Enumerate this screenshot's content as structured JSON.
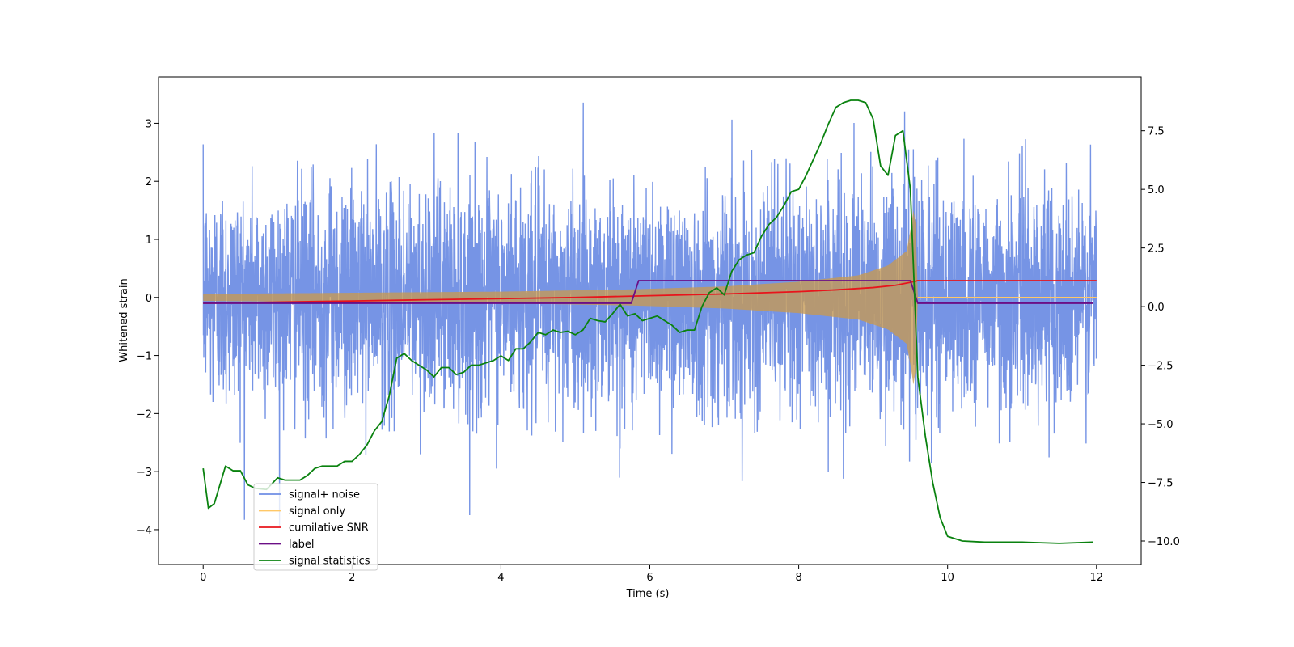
{
  "chart_data": {
    "type": "line",
    "title": "",
    "xlabel": "Time (s)",
    "ylabel": "Whitened strain",
    "ylabel_right": "",
    "xlim": [
      -0.6,
      12.6
    ],
    "ylim": [
      -4.6,
      3.8
    ],
    "ylim_right": [
      -11.0,
      9.8
    ],
    "x_ticks": [
      0,
      2,
      4,
      6,
      8,
      10,
      12
    ],
    "x_tick_labels": [
      "0",
      "2",
      "4",
      "6",
      "8",
      "10",
      "12"
    ],
    "y_ticks": [
      3,
      2,
      1,
      0,
      -1,
      -2,
      -3,
      -4
    ],
    "y_tick_labels": [
      "3",
      "2",
      "1",
      "0",
      "−1",
      "−2",
      "−3",
      "−4"
    ],
    "y_right_ticks": [
      7.5,
      5.0,
      2.5,
      0.0,
      -2.5,
      -5.0,
      -7.5,
      -10.0
    ],
    "y_right_tick_labels": [
      "7.5",
      "5.0",
      "2.5",
      "0.0",
      "−2.5",
      "−5.0",
      "−7.5",
      "−10.0"
    ],
    "grid": false,
    "legend_position": "lower-left",
    "legend": [
      {
        "label": "signal+ noise",
        "color": "#6f8ee4"
      },
      {
        "label": "signal only",
        "color": "#ffc867"
      },
      {
        "label": "cumilative SNR",
        "color": "#e8141b"
      },
      {
        "label": "label",
        "color": "#6b0f86"
      },
      {
        "label": "signal statistics",
        "color": "#0a820f"
      }
    ],
    "series": [
      {
        "name": "signal+ noise",
        "axis": "left",
        "color": "#6f8ee4",
        "description": "whitened Gaussian noise plus chirp, 0 to 12 s",
        "t_start": 0.0,
        "t_end": 12.0,
        "min": -4.15,
        "max": 3.45
      },
      {
        "name": "signal only",
        "axis": "left",
        "color": "#ffc867",
        "description": "chirp envelope growing toward merger at ~9.55 s, zero afterwards",
        "envelope": [
          [
            0.0,
            0.06
          ],
          [
            2.0,
            0.08
          ],
          [
            4.0,
            0.1
          ],
          [
            5.8,
            0.14
          ],
          [
            7.0,
            0.19
          ],
          [
            8.0,
            0.27
          ],
          [
            8.8,
            0.38
          ],
          [
            9.2,
            0.55
          ],
          [
            9.45,
            0.8
          ],
          [
            9.52,
            1.3
          ],
          [
            9.56,
            1.7
          ],
          [
            9.6,
            0.0
          ],
          [
            12.0,
            0.0
          ]
        ]
      },
      {
        "name": "cumilative SNR",
        "axis": "left",
        "color": "#e8141b",
        "x": [
          0.0,
          1.0,
          2.0,
          3.0,
          4.0,
          5.0,
          6.0,
          7.0,
          8.0,
          8.5,
          9.0,
          9.3,
          9.5,
          9.6,
          10.0,
          12.0
        ],
        "values": [
          -0.1,
          -0.08,
          -0.06,
          -0.04,
          -0.02,
          0.0,
          0.03,
          0.06,
          0.1,
          0.13,
          0.17,
          0.21,
          0.26,
          0.29,
          0.29,
          0.29
        ]
      },
      {
        "name": "label",
        "axis": "left",
        "color": "#6b0f86",
        "x": [
          0.0,
          5.75,
          5.85,
          9.5,
          9.6,
          11.95
        ],
        "values": [
          -0.1,
          -0.1,
          0.29,
          0.29,
          -0.1,
          -0.1
        ]
      },
      {
        "name": "signal statistics",
        "axis": "right",
        "color": "#0a820f",
        "x": [
          0.0,
          0.07,
          0.15,
          0.3,
          0.4,
          0.5,
          0.6,
          0.7,
          0.85,
          1.0,
          1.1,
          1.3,
          1.4,
          1.5,
          1.6,
          1.8,
          1.9,
          2.0,
          2.1,
          2.2,
          2.3,
          2.4,
          2.5,
          2.6,
          2.7,
          2.8,
          2.9,
          3.0,
          3.1,
          3.2,
          3.3,
          3.4,
          3.5,
          3.6,
          3.7,
          3.8,
          3.9,
          4.0,
          4.1,
          4.2,
          4.3,
          4.4,
          4.5,
          4.6,
          4.7,
          4.8,
          4.9,
          5.0,
          5.1,
          5.2,
          5.3,
          5.4,
          5.5,
          5.6,
          5.7,
          5.8,
          5.9,
          6.0,
          6.1,
          6.2,
          6.3,
          6.4,
          6.5,
          6.6,
          6.7,
          6.8,
          6.9,
          7.0,
          7.1,
          7.2,
          7.3,
          7.4,
          7.5,
          7.6,
          7.7,
          7.8,
          7.9,
          8.0,
          8.1,
          8.2,
          8.3,
          8.4,
          8.5,
          8.6,
          8.7,
          8.8,
          8.9,
          9.0,
          9.1,
          9.2,
          9.3,
          9.4,
          9.5,
          9.6,
          9.7,
          9.8,
          9.9,
          10.0,
          10.2,
          10.5,
          11.0,
          11.5,
          11.95
        ],
        "values": [
          -6.9,
          -8.6,
          -8.4,
          -6.8,
          -7.0,
          -7.0,
          -7.6,
          -7.75,
          -7.8,
          -7.3,
          -7.4,
          -7.4,
          -7.2,
          -6.9,
          -6.8,
          -6.8,
          -6.6,
          -6.6,
          -6.3,
          -5.9,
          -5.3,
          -4.9,
          -3.8,
          -2.2,
          -2.0,
          -2.3,
          -2.5,
          -2.7,
          -3.0,
          -2.6,
          -2.6,
          -2.9,
          -2.8,
          -2.5,
          -2.5,
          -2.4,
          -2.3,
          -2.1,
          -2.3,
          -1.8,
          -1.8,
          -1.5,
          -1.1,
          -1.2,
          -1.0,
          -1.1,
          -1.05,
          -1.2,
          -1.0,
          -0.5,
          -0.6,
          -0.65,
          -0.3,
          0.1,
          -0.4,
          -0.3,
          -0.6,
          -0.5,
          -0.4,
          -0.6,
          -0.8,
          -1.1,
          -1.0,
          -1.0,
          0.0,
          0.6,
          0.8,
          0.5,
          1.5,
          2.0,
          2.2,
          2.3,
          3.0,
          3.5,
          3.8,
          4.3,
          4.9,
          5.0,
          5.6,
          6.3,
          7.0,
          7.8,
          8.5,
          8.7,
          8.8,
          8.8,
          8.7,
          8.0,
          6.0,
          5.6,
          7.3,
          7.5,
          5.0,
          -3.0,
          -5.5,
          -7.5,
          -9.0,
          -9.8,
          -10.0,
          -10.05,
          -10.05,
          -10.1,
          -10.05
        ]
      }
    ]
  }
}
